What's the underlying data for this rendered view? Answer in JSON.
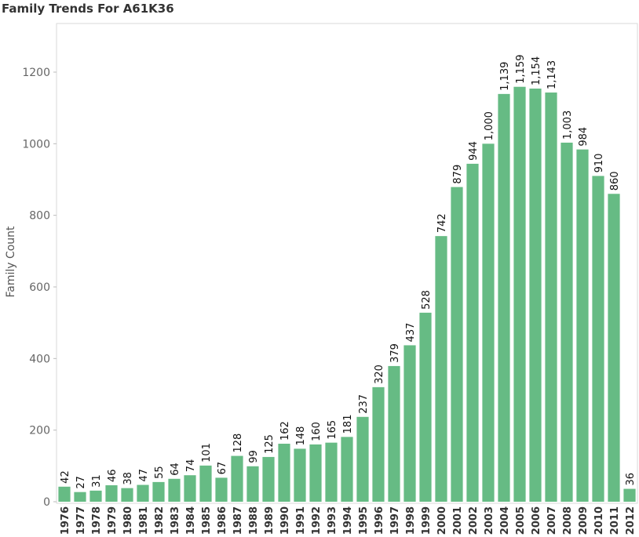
{
  "chart_data": {
    "type": "bar",
    "title": "Family Trends For A61K36",
    "xlabel": "",
    "ylabel": "Family Count",
    "ylim": [
      0,
      1300
    ],
    "yticks": [
      0,
      200,
      400,
      600,
      800,
      1000,
      1200
    ],
    "grid": false,
    "bar_color": "#66bb84",
    "categories": [
      "1976",
      "1977",
      "1978",
      "1979",
      "1980",
      "1981",
      "1982",
      "1983",
      "1984",
      "1985",
      "1986",
      "1987",
      "1988",
      "1989",
      "1990",
      "1991",
      "1992",
      "1993",
      "1994",
      "1995",
      "1996",
      "1997",
      "1998",
      "1999",
      "2000",
      "2001",
      "2002",
      "2003",
      "2004",
      "2005",
      "2006",
      "2007",
      "2008",
      "2009",
      "2010",
      "2011",
      "2012"
    ],
    "values": [
      42,
      27,
      31,
      46,
      38,
      47,
      55,
      64,
      74,
      101,
      67,
      128,
      99,
      125,
      162,
      148,
      160,
      165,
      181,
      237,
      320,
      379,
      437,
      528,
      742,
      879,
      944,
      1000,
      1139,
      1159,
      1154,
      1143,
      1003,
      984,
      910,
      860,
      36
    ],
    "data_labels": [
      "42",
      "27",
      "31",
      "46",
      "38",
      "47",
      "55",
      "64",
      "74",
      "101",
      "67",
      "128",
      "99",
      "125",
      "162",
      "148",
      "160",
      "165",
      "181",
      "237",
      "320",
      "379",
      "437",
      "528",
      "742",
      "879",
      "944",
      "1,000",
      "1,139",
      "1,159",
      "1,154",
      "1,143",
      "1,003",
      "984",
      "910",
      "860",
      "36"
    ]
  }
}
